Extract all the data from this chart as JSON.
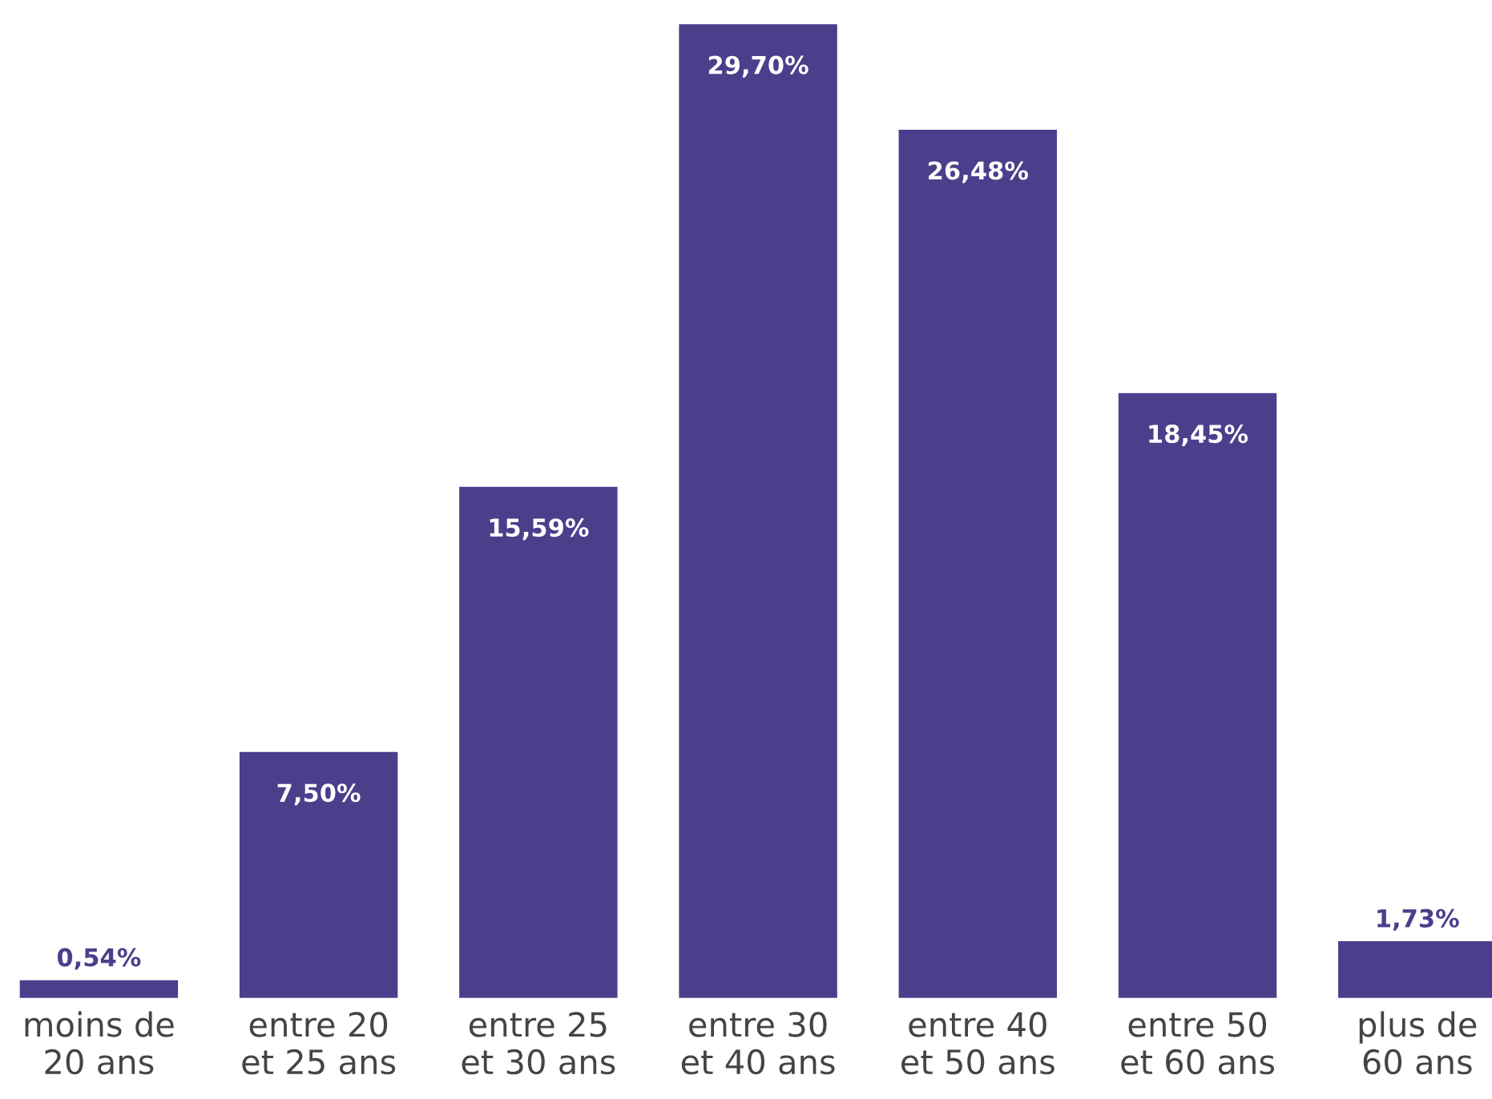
{
  "chart_data": {
    "type": "bar",
    "categories": [
      "moins de\n20 ans",
      "entre 20\net 25 ans",
      "entre 25\net 30 ans",
      "entre 30\net 40 ans",
      "entre 40\net 50 ans",
      "entre 50\net 60 ans",
      "plus de\n60 ans"
    ],
    "values": [
      0.54,
      7.5,
      15.59,
      29.7,
      26.48,
      18.45,
      1.73
    ],
    "value_labels": [
      "0,54%",
      "7,50%",
      "15,59%",
      "29,70%",
      "26,48%",
      "18,45%",
      "1,73%"
    ],
    "color": "#4b3f8c",
    "tick_labels": "x",
    "grid": false,
    "legend": false
  }
}
